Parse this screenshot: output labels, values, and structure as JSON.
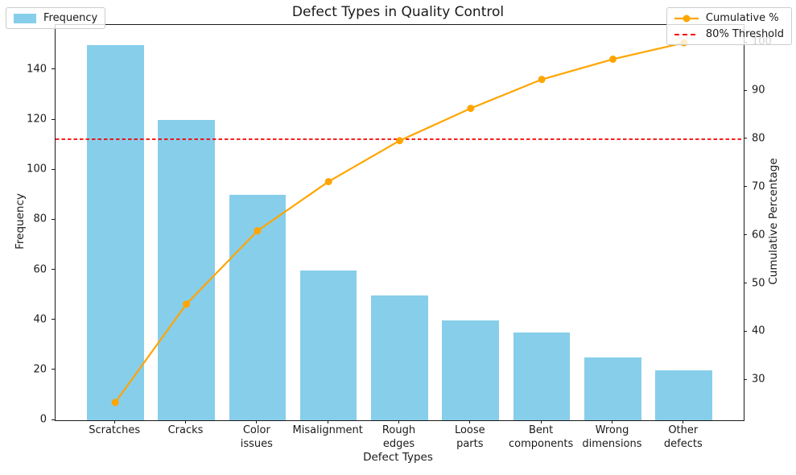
{
  "chart_data": {
    "type": "bar",
    "subtype": "pareto-combo-bar-line",
    "title": "Defect Types in Quality Control",
    "xlabel": "Defect Types",
    "ylabel_left": "Frequency",
    "ylabel_right": "Cumulative Percentage",
    "categories": [
      "Scratches",
      "Cracks",
      "Color\nissues",
      "Misalignment",
      "Rough\nedges",
      "Loose\nparts",
      "Bent\ncomponents",
      "Wrong\ndimensions",
      "Other\ndefects"
    ],
    "series": [
      {
        "name": "Frequency",
        "type": "bar",
        "axis": "left",
        "color": "#87CEEB",
        "values": [
          150,
          120,
          90,
          60,
          50,
          40,
          35,
          25,
          20
        ]
      },
      {
        "name": "Cumulative %",
        "type": "line",
        "axis": "right",
        "color": "#FFA500",
        "marker": "circle",
        "values": [
          25.4,
          45.8,
          61.0,
          71.2,
          79.7,
          86.4,
          92.4,
          96.6,
          100.0
        ]
      },
      {
        "name": "80% Threshold",
        "type": "hline",
        "axis": "right",
        "color": "#F20000",
        "style": "dashed",
        "value": 80
      }
    ],
    "ylim_left": [
      0,
      158
    ],
    "ylim_right": [
      21.7,
      103.7
    ],
    "yticks_left": [
      0,
      20,
      40,
      60,
      80,
      100,
      120,
      140
    ],
    "yticks_right": [
      30,
      40,
      50,
      60,
      70,
      80,
      90,
      100
    ],
    "x_extent": [
      -0.84,
      8.84
    ],
    "bar_width_units": 0.8,
    "grid": false,
    "legend_positions": {
      "frequency": "upper-left",
      "cumulative": "upper-right"
    }
  }
}
